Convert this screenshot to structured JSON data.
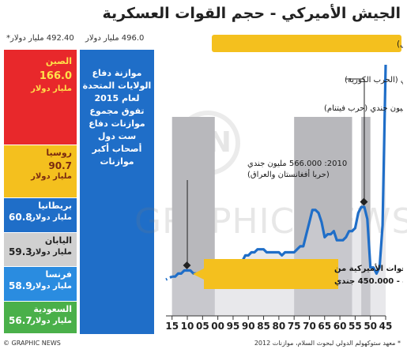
{
  "title": "الجيش الأميركي - حجم القوات العسكرية",
  "footer": {
    "brand": "© GRAPHIC NEWS",
    "source": "* معهد ستوكهولم الدولي لبحوث السلام، موازنات 2012"
  },
  "watermark": "GRAPHIC NEWS",
  "logo_text": "GN",
  "budgets": {
    "others_total": "492.40 مليار دولار*",
    "us_total": "496.0 مليار دولار",
    "us_text": [
      "موازنة دفاع",
      "الولايات المتحدة",
      "لعام 2015",
      "تفوق مجموع",
      "موازنات دفاع",
      "ست دول",
      "أصحاب أكبر",
      "موازنات"
    ],
    "countries": [
      {
        "name": "الصين",
        "value": "166.0",
        "unit": "مليار دولار",
        "color": "#e8282b",
        "text_color": "#ffe14a",
        "amount": 166.0
      },
      {
        "name": "روسيا",
        "value": "90.7",
        "unit": "مليار دولار",
        "color": "#f4c01e",
        "text_color": "#7a2a10",
        "amount": 90.7
      },
      {
        "name": "بريطانيا",
        "value": "60.8",
        "unit": "مليار دولار",
        "color": "#1f6ec8",
        "text_color": "#ffffff",
        "amount": 60.8
      },
      {
        "name": "اليابان",
        "value": "59.3",
        "unit": "مليار دولار",
        "color": "#d0d0d0",
        "text_color": "#222222",
        "amount": 59.3
      },
      {
        "name": "فرنسا",
        "value": "58.9",
        "unit": "مليار دولار",
        "color": "#2a8ce0",
        "text_color": "#ffffff",
        "amount": 58.9
      },
      {
        "name": "السعودية",
        "value": "56.7",
        "unit": "مليار دولار",
        "color": "#4ab04a",
        "text_color": "#ffffff",
        "amount": 56.7
      }
    ]
  },
  "chart_data": {
    "type": "line",
    "x": [
      1945,
      1946,
      1947,
      1948,
      1949,
      1950,
      1951,
      1952,
      1953,
      1954,
      1955,
      1956,
      1957,
      1958,
      1959,
      1960,
      1961,
      1962,
      1963,
      1964,
      1965,
      1966,
      1967,
      1968,
      1969,
      1970,
      1971,
      1972,
      1973,
      1974,
      1975,
      1976,
      1977,
      1978,
      1979,
      1980,
      1981,
      1982,
      1983,
      1984,
      1985,
      1986,
      1987,
      1988,
      1989,
      1990,
      1991,
      1992,
      1993,
      1994,
      1995,
      1996,
      1997,
      1998,
      1999,
      2000,
      2001,
      2002,
      2003,
      2004,
      2005,
      2006,
      2007,
      2008,
      2009,
      2010,
      2011,
      2012,
      2013,
      2014,
      2015
    ],
    "values": [
      8.3,
      3.0,
      1.6,
      1.4,
      1.6,
      1.6,
      3.2,
      3.6,
      3.6,
      3.4,
      2.9,
      2.8,
      2.8,
      2.6,
      2.5,
      2.5,
      2.5,
      2.8,
      2.7,
      2.7,
      2.6,
      3.1,
      3.4,
      3.5,
      3.5,
      3.1,
      2.7,
      2.3,
      2.3,
      2.2,
      2.1,
      2.1,
      2.1,
      2.1,
      2.0,
      2.1,
      2.1,
      2.1,
      2.1,
      2.1,
      2.2,
      2.2,
      2.2,
      2.1,
      2.1,
      2.0,
      2.0,
      1.8,
      1.7,
      1.6,
      1.5,
      1.5,
      1.5,
      1.4,
      1.4,
      1.4,
      1.4,
      1.4,
      1.4,
      1.4,
      1.4,
      1.4,
      1.4,
      1.4,
      1.5,
      1.5,
      1.5,
      1.4,
      1.4,
      1.3,
      1.3
    ],
    "projection": {
      "x": [
        2015,
        2016,
        2017
      ],
      "values": [
        1.3,
        1.25,
        1.2
      ]
    },
    "x_ticks": [
      1945,
      1950,
      1955,
      1960,
      1965,
      1970,
      1975,
      1980,
      1985,
      1990,
      1995,
      2000,
      2005,
      2010,
      2015
    ],
    "x_tick_labels": [
      "45",
      "50",
      "55",
      "60",
      "65",
      "70",
      "75",
      "80",
      "85",
      "90",
      "95",
      "00",
      "05",
      "10",
      "15"
    ],
    "xlim": [
      2017,
      1945
    ],
    "ylim": [
      0,
      8.3
    ],
    "war_periods": [
      [
        1950,
        1953
      ],
      [
        1956,
        1975
      ],
      [
        2001,
        2015
      ]
    ],
    "annotations": [
      {
        "text": "1945: 8.3 مليون جندي (الحرب العالمية الأولى)",
        "x": 1945,
        "y": 8.3
      },
      {
        "text": "1950-1953: 1.6 مليون جندي (الحرب الكورية)",
        "x": 1952,
        "y": 3.6
      },
      {
        "text": "1956-1975: 1.5 مليون جندي (حرب فيتنام)",
        "x": 1968,
        "y": 3.5
      },
      {
        "text": "2010: 566.000 مليون جندي",
        "sub": "(حربا أفغانستان والعراق)",
        "x": 2010,
        "y": 1.5
      },
      {
        "text": "2017: من المقرر خفض القوات الأميركية من",
        "sub": "520.000 إلى 440.000 - 450.000 جندي",
        "x": 2017,
        "y": 1.2
      }
    ]
  }
}
